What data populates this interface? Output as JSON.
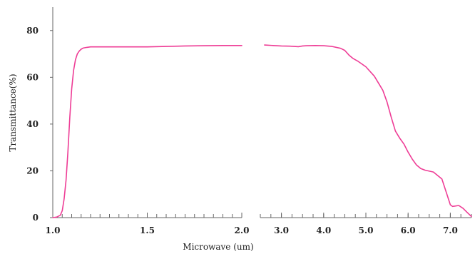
{
  "chart_data": {
    "type": "line",
    "title": "",
    "xlabel": "Microwave (um)",
    "ylabel": "Transmittance(%)",
    "ylim": [
      0,
      90
    ],
    "y_ticks": [
      0,
      20,
      40,
      60,
      80
    ],
    "y_tick_labels": [
      "0",
      "20",
      "40",
      "60",
      "80"
    ],
    "line_color": "#ee3d96",
    "grid": false,
    "legend": "none",
    "panels": [
      {
        "xlim": [
          1.0,
          2.0
        ],
        "x_ticks": [
          1.0,
          1.5,
          2.0
        ],
        "x_tick_labels": [
          "1.0",
          "1.5",
          "2.0"
        ],
        "minor_tick_step": 0.05,
        "series": [
          {
            "x": [
              1.0,
              1.02,
              1.04,
              1.05,
              1.06,
              1.07,
              1.08,
              1.09,
              1.1,
              1.11,
              1.12,
              1.13,
              1.14,
              1.15,
              1.16,
              1.18,
              1.2,
              1.25,
              1.3,
              1.4,
              1.5,
              1.6,
              1.7,
              1.8,
              1.9,
              1.95,
              2.0
            ],
            "y": [
              0,
              0.2,
              1,
              3,
              8,
              16,
              28,
              43,
              55,
              63,
              67.5,
              70,
              71.2,
              72,
              72.5,
              72.8,
              73,
              73,
              73,
              73,
              73,
              73.2,
              73.4,
              73.5,
              73.6,
              73.6,
              73.6
            ]
          }
        ]
      },
      {
        "xlim": [
          2.5,
          7.5
        ],
        "x_ticks": [
          3.0,
          4.0,
          5.0,
          6.0,
          7.0
        ],
        "x_tick_labels": [
          "3.0",
          "4.0",
          "5.0",
          "6.0",
          "7.0"
        ],
        "minor_tick_step": 0.25,
        "series": [
          {
            "x": [
              2.6,
              2.8,
              3.0,
              3.2,
              3.4,
              3.5,
              3.6,
              3.8,
              4.0,
              4.2,
              4.4,
              4.5,
              4.6,
              4.7,
              4.8,
              5.0,
              5.2,
              5.4,
              5.5,
              5.6,
              5.7,
              5.8,
              5.9,
              6.0,
              6.1,
              6.2,
              6.3,
              6.4,
              6.6,
              6.8,
              6.9,
              7.0,
              7.05,
              7.1,
              7.2,
              7.3,
              7.4,
              7.5
            ],
            "y": [
              73.8,
              73.6,
              73.4,
              73.3,
              73.1,
              73.4,
              73.5,
              73.6,
              73.5,
              73.2,
              72.4,
              71.5,
              69.5,
              68,
              67,
              64.5,
              60.5,
              54.5,
              49.5,
              43,
              37,
              34,
              31.5,
              28,
              25,
              22.5,
              21,
              20.3,
              19.5,
              16.5,
              11,
              5.5,
              4.8,
              4.9,
              5.2,
              4,
              2.2,
              0.5
            ]
          }
        ]
      }
    ]
  }
}
